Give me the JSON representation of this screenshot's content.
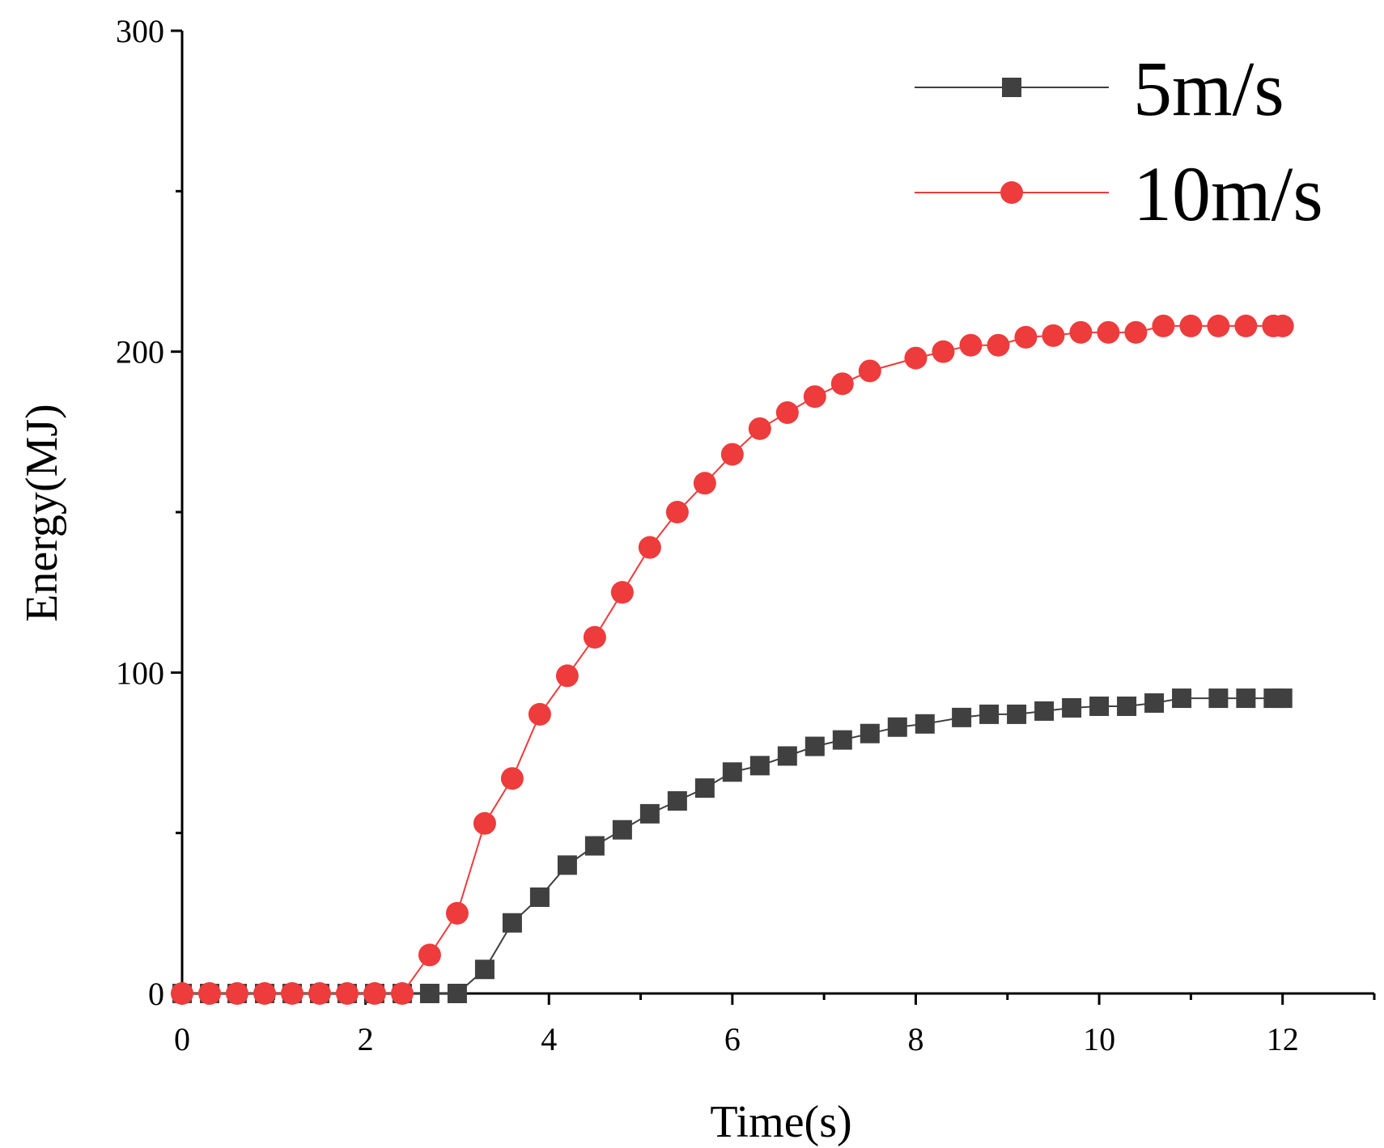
{
  "chart_data": {
    "type": "line",
    "title": "",
    "xlabel": "Time(s)",
    "ylabel": "Energy(MJ)",
    "xlim": [
      0,
      13
    ],
    "ylim": [
      0,
      300
    ],
    "xticks": [
      0,
      2,
      4,
      6,
      8,
      10,
      12
    ],
    "xtick_labels": [
      "0",
      "2",
      "4",
      "6",
      "8",
      "10",
      "12"
    ],
    "yticks": [
      0,
      100,
      200,
      300
    ],
    "ytick_labels": [
      "0",
      "100",
      "200",
      "300"
    ],
    "grid": false,
    "legend_position": "top-right",
    "series": [
      {
        "name": "5m/s",
        "color": "#404040",
        "marker": "square",
        "points": [
          [
            0,
            0
          ],
          [
            0.3,
            0
          ],
          [
            0.6,
            0
          ],
          [
            0.9,
            0
          ],
          [
            1.2,
            0
          ],
          [
            1.5,
            0
          ],
          [
            1.8,
            0
          ],
          [
            2.1,
            0
          ],
          [
            2.4,
            0
          ],
          [
            2.7,
            0
          ],
          [
            3.0,
            0
          ],
          [
            3.3,
            7.5
          ],
          [
            3.6,
            22
          ],
          [
            3.9,
            30
          ],
          [
            4.2,
            40
          ],
          [
            4.5,
            46
          ],
          [
            4.8,
            51
          ],
          [
            5.1,
            56
          ],
          [
            5.4,
            60
          ],
          [
            5.7,
            64
          ],
          [
            6.0,
            69
          ],
          [
            6.3,
            71
          ],
          [
            6.6,
            74
          ],
          [
            6.9,
            77
          ],
          [
            7.2,
            79
          ],
          [
            7.5,
            81
          ],
          [
            7.8,
            83
          ],
          [
            8.1,
            84
          ],
          [
            8.5,
            86
          ],
          [
            8.8,
            87
          ],
          [
            9.1,
            87
          ],
          [
            9.4,
            88
          ],
          [
            9.7,
            89
          ],
          [
            10.0,
            89.5
          ],
          [
            10.3,
            89.5
          ],
          [
            10.6,
            90.5
          ],
          [
            10.9,
            92
          ],
          [
            11.3,
            92
          ],
          [
            11.6,
            92
          ],
          [
            11.9,
            92
          ],
          [
            12.0,
            92
          ]
        ]
      },
      {
        "name": "10m/s",
        "color": "#ee3b3b",
        "marker": "circle",
        "points": [
          [
            0,
            0
          ],
          [
            0.3,
            0
          ],
          [
            0.6,
            0
          ],
          [
            0.9,
            0
          ],
          [
            1.2,
            0
          ],
          [
            1.5,
            0
          ],
          [
            1.8,
            0
          ],
          [
            2.1,
            0
          ],
          [
            2.4,
            0
          ],
          [
            2.7,
            12
          ],
          [
            3.0,
            25
          ],
          [
            3.3,
            53
          ],
          [
            3.6,
            67
          ],
          [
            3.9,
            87
          ],
          [
            4.2,
            99
          ],
          [
            4.5,
            111
          ],
          [
            4.8,
            125
          ],
          [
            5.1,
            139
          ],
          [
            5.4,
            150
          ],
          [
            5.7,
            159
          ],
          [
            6.0,
            168
          ],
          [
            6.3,
            176
          ],
          [
            6.6,
            181
          ],
          [
            6.9,
            186
          ],
          [
            7.2,
            190
          ],
          [
            7.5,
            194
          ],
          [
            8.0,
            198
          ],
          [
            8.3,
            200
          ],
          [
            8.6,
            202
          ],
          [
            8.9,
            202
          ],
          [
            9.2,
            204.5
          ],
          [
            9.5,
            205
          ],
          [
            9.8,
            206
          ],
          [
            10.1,
            206
          ],
          [
            10.4,
            206
          ],
          [
            10.7,
            208
          ],
          [
            11.0,
            208
          ],
          [
            11.3,
            208
          ],
          [
            11.6,
            208
          ],
          [
            11.9,
            208
          ],
          [
            12.0,
            208
          ]
        ]
      }
    ]
  }
}
